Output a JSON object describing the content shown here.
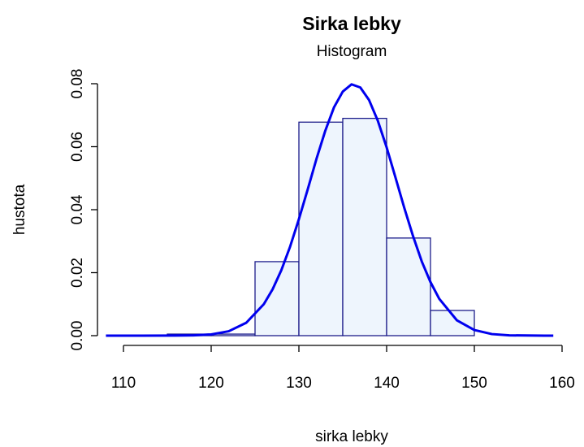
{
  "chart_data": {
    "type": "histogram",
    "title": "Sirka lebky",
    "subtitle": "Histogram",
    "xlabel": "sirka lebky",
    "ylabel": "hustota",
    "bins": [
      115,
      120,
      125,
      130,
      135,
      140,
      145,
      150
    ],
    "values": [
      0.0005,
      0.0005,
      0.0235,
      0.0678,
      0.069,
      0.031,
      0.008
    ],
    "color": "#eef5fd",
    "edgecolor": "#1c1c8a",
    "xlim": [
      110,
      160
    ],
    "ylim": [
      0,
      0.08
    ],
    "xticks": [
      110,
      120,
      130,
      140,
      150,
      160
    ],
    "yticks": [
      {
        "value": 0,
        "label": "0.00"
      },
      0.02,
      0.04,
      0.06,
      0.08
    ],
    "curve": {
      "type": "line",
      "color": "#0000ee",
      "x": [
        108,
        112,
        116,
        118,
        120,
        122,
        124,
        126,
        127,
        128,
        129,
        130,
        131,
        132,
        133,
        134,
        135,
        136,
        137,
        138,
        139,
        140,
        141,
        142,
        143,
        144,
        145,
        146,
        148,
        150,
        152,
        154,
        158,
        159
      ],
      "values": [
        0,
        0,
        2e-05,
        0.0001,
        0.0004,
        0.0014,
        0.0041,
        0.01,
        0.0147,
        0.0208,
        0.0283,
        0.037,
        0.0464,
        0.0561,
        0.065,
        0.0725,
        0.0775,
        0.0798,
        0.0788,
        0.0748,
        0.0682,
        0.0598,
        0.0503,
        0.0407,
        0.0317,
        0.0236,
        0.017,
        0.0117,
        0.0049,
        0.0018,
        0.0005,
        0.0001,
        0,
        0
      ]
    }
  }
}
